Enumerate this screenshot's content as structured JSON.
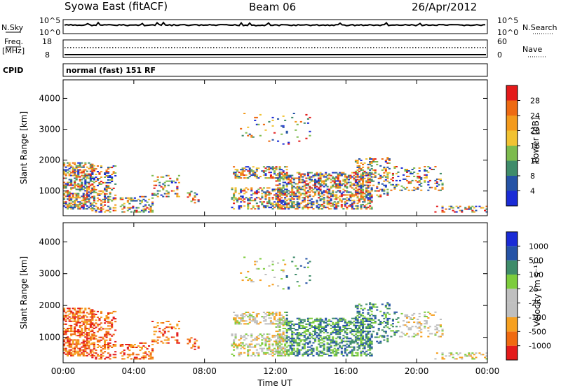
{
  "header": {
    "title_left": "Syowa East (fitACF)",
    "title_center": "Beam 06",
    "title_right": "26/Apr/2012"
  },
  "panel_nsky": {
    "label": "N.Sky",
    "left_top": "10^5",
    "left_bottom": "10^0",
    "right_top": "10^5",
    "right_bottom": "10^0",
    "right_label": "N.Search"
  },
  "panel_freq": {
    "label_line1": "Freq.",
    "label_line2": "[MHz]",
    "left_top": "18",
    "left_bottom": "8",
    "right_top": "60",
    "right_bottom": "0",
    "right_label": "Nave"
  },
  "panel_cpid": {
    "label": "CPID",
    "text": "normal (fast) 151 RF"
  },
  "colors": {
    "power_scale": [
      "#1a2bd6",
      "#2553a6",
      "#3f8c6a",
      "#7dbb4e",
      "#f1c232",
      "#f39a1c",
      "#ee6a12",
      "#e41a1a"
    ],
    "velocity_scale": [
      "#e41a1a",
      "#f06a10",
      "#f6a020",
      "#bfbfbf",
      "#bfbfbf",
      "#7dcc3c",
      "#3f8c6a",
      "#2553a6",
      "#1a2bd6"
    ]
  },
  "chart_data": [
    {
      "type": "heatmap",
      "name": "power",
      "ylabel": "Slant Range [km]",
      "y_ticks": [
        "1000",
        "2000",
        "3000",
        "4000"
      ],
      "ylim": [
        200,
        4600
      ],
      "x_ticks": [
        "00:00",
        "04:00",
        "08:00",
        "12:00",
        "16:00",
        "20:00",
        "00:00"
      ],
      "xlim_hours": [
        0,
        24
      ],
      "colorbar_label": "Power [dB]",
      "colorbar_ticks": [
        "4",
        "8",
        "12",
        "16",
        "20",
        "24",
        "28"
      ],
      "colorbar_range": [
        0,
        32
      ]
    },
    {
      "type": "heatmap",
      "name": "velocity",
      "ylabel": "Slant Range [km]",
      "y_ticks": [
        "1000",
        "2000",
        "3000",
        "4000"
      ],
      "ylim": [
        200,
        4600
      ],
      "x_ticks": [
        "00:00",
        "04:00",
        "08:00",
        "12:00",
        "16:00",
        "20:00",
        "00:00"
      ],
      "xlim_hours": [
        0,
        24
      ],
      "xlabel": "Time UT",
      "colorbar_label": "Velocity [m s⁻¹]",
      "colorbar_ticks": [
        "-1000",
        "-500",
        "-100",
        "-25",
        "25",
        "100",
        "500",
        "1000"
      ]
    }
  ]
}
